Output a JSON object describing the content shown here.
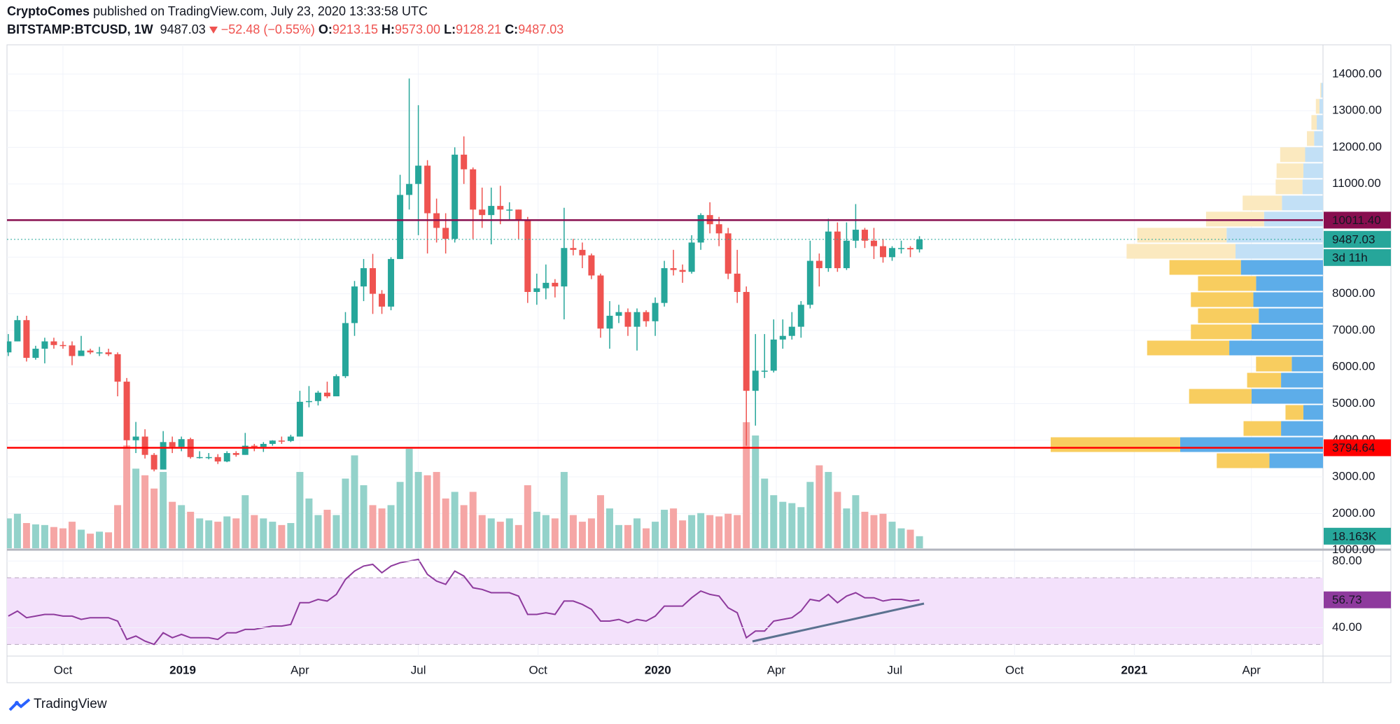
{
  "header": {
    "author": "CryptoComes",
    "published": "published on TradingView.com, July 23, 2020 13:33:58 UTC",
    "symbol": "BITSTAMP:BTCUSD, 1W",
    "close": "9487.03",
    "change": "−52.48 (−0.55%)",
    "ohlc": [
      {
        "label": "O:",
        "value": "9213.15"
      },
      {
        "label": "H:",
        "value": "9573.00"
      },
      {
        "label": "L:",
        "value": "9128.21"
      },
      {
        "label": "C:",
        "value": "9487.03"
      }
    ]
  },
  "footer": {
    "brand": "TradingView"
  },
  "chart_data": {
    "type": "candlestick",
    "x": [
      "2018-08-20",
      "2018-08-27",
      "2018-09-03",
      "2018-09-10",
      "2018-09-17",
      "2018-09-24",
      "2018-10-01",
      "2018-10-08",
      "2018-10-15",
      "2018-10-22",
      "2018-10-29",
      "2018-11-05",
      "2018-11-12",
      "2018-11-19",
      "2018-11-26",
      "2018-12-03",
      "2018-12-10",
      "2018-12-17",
      "2018-12-24",
      "2018-12-31",
      "2019-01-07",
      "2019-01-14",
      "2019-01-21",
      "2019-01-28",
      "2019-02-04",
      "2019-02-11",
      "2019-02-18",
      "2019-02-25",
      "2019-03-04",
      "2019-03-11",
      "2019-03-18",
      "2019-03-25",
      "2019-04-01",
      "2019-04-08",
      "2019-04-15",
      "2019-04-22",
      "2019-04-29",
      "2019-05-06",
      "2019-05-13",
      "2019-05-20",
      "2019-05-27",
      "2019-06-03",
      "2019-06-10",
      "2019-06-17",
      "2019-06-24",
      "2019-07-01",
      "2019-07-08",
      "2019-07-15",
      "2019-07-22",
      "2019-07-29",
      "2019-08-05",
      "2019-08-12",
      "2019-08-19",
      "2019-08-26",
      "2019-09-02",
      "2019-09-09",
      "2019-09-16",
      "2019-09-23",
      "2019-09-30",
      "2019-10-07",
      "2019-10-14",
      "2019-10-21",
      "2019-10-28",
      "2019-11-04",
      "2019-11-11",
      "2019-11-18",
      "2019-11-25",
      "2019-12-02",
      "2019-12-09",
      "2019-12-16",
      "2019-12-23",
      "2019-12-30",
      "2020-01-06",
      "2020-01-13",
      "2020-01-20",
      "2020-01-27",
      "2020-02-03",
      "2020-02-10",
      "2020-02-17",
      "2020-02-24",
      "2020-03-02",
      "2020-03-09",
      "2020-03-16",
      "2020-03-23",
      "2020-03-30",
      "2020-04-06",
      "2020-04-13",
      "2020-04-20",
      "2020-04-27",
      "2020-05-04",
      "2020-05-11",
      "2020-05-18",
      "2020-05-25",
      "2020-06-01",
      "2020-06-08",
      "2020-06-15",
      "2020-06-22",
      "2020-06-29",
      "2020-07-06",
      "2020-07-13",
      "2020-07-20"
    ],
    "open": [
      6400,
      6700,
      7280,
      6250,
      6500,
      6700,
      6600,
      6590,
      6300,
      6450,
      6400,
      6400,
      6350,
      5600,
      4000,
      4100,
      3600,
      3200,
      3950,
      3820,
      4030,
      3540,
      3540,
      3540,
      3420,
      3650,
      3600,
      3850,
      3820,
      3900,
      3990,
      3980,
      4100,
      5050,
      5070,
      5300,
      5200,
      5750,
      7200,
      8200,
      8700,
      8000,
      7650,
      8950,
      10700,
      11000,
      11500,
      10200,
      9800,
      9500,
      11800,
      11400,
      10300,
      10150,
      10400,
      10300,
      10300,
      10000,
      8050,
      8150,
      8300,
      8200,
      9250,
      9200,
      9050,
      8500,
      7050,
      7400,
      7500,
      7100,
      7500,
      7250,
      7750,
      8700,
      8650,
      8600,
      9400,
      10150,
      9900,
      9650,
      8550,
      8050,
      5350,
      5900,
      5900,
      6750,
      6850,
      7100,
      7700,
      8900,
      8700,
      9700,
      8700,
      9450,
      9750,
      9450,
      9300,
      9000,
      9250,
      9250,
      9213.15
    ],
    "high": [
      6900,
      7400,
      7400,
      6580,
      6800,
      6800,
      6700,
      6700,
      6850,
      6500,
      6550,
      6500,
      6400,
      5700,
      4500,
      4300,
      3650,
      4250,
      4100,
      4100,
      4070,
      3700,
      3650,
      3620,
      3700,
      3700,
      4200,
      3900,
      3950,
      4000,
      4100,
      4150,
      5350,
      5480,
      5350,
      5600,
      5800,
      7500,
      8350,
      8950,
      9090,
      8100,
      9000,
      11250,
      13880,
      13150,
      11650,
      10600,
      10200,
      12000,
      12300,
      11450,
      10900,
      10900,
      10950,
      10500,
      10300,
      10100,
      8550,
      8800,
      8400,
      10350,
      9500,
      9400,
      9100,
      8550,
      7800,
      7700,
      7600,
      7600,
      7550,
      7900,
      8900,
      9200,
      8800,
      9600,
      10200,
      10500,
      10100,
      9800,
      9200,
      8200,
      6900,
      6900,
      7300,
      7300,
      7500,
      7800,
      9450,
      9100,
      10050,
      9950,
      9950,
      10450,
      9800,
      9800,
      9500,
      9300,
      9450,
      9300,
      9573
    ],
    "low": [
      6300,
      6700,
      6150,
      6200,
      6100,
      6500,
      6500,
      6050,
      6300,
      6350,
      6300,
      6300,
      5200,
      3800,
      3650,
      3500,
      3150,
      3200,
      3650,
      3700,
      3500,
      3500,
      3480,
      3350,
      3400,
      3550,
      3600,
      3700,
      3680,
      3850,
      3900,
      3950,
      4100,
      4900,
      4950,
      5150,
      5200,
      5700,
      6850,
      7800,
      7450,
      7450,
      7550,
      8950,
      10300,
      9600,
      9100,
      9400,
      9100,
      9400,
      11000,
      9500,
      9800,
      9350,
      9900,
      10000,
      9500,
      7750,
      7700,
      7850,
      7900,
      7300,
      9050,
      8700,
      8400,
      6800,
      6500,
      7200,
      6850,
      6450,
      7100,
      6850,
      7650,
      8500,
      8300,
      8550,
      9200,
      9650,
      9300,
      8400,
      7750,
      3850,
      4400,
      5700,
      5850,
      6500,
      6750,
      6800,
      7600,
      8200,
      8600,
      8600,
      8650,
      9250,
      9250,
      8950,
      8850,
      8900,
      9100,
      9000,
      9128.21
    ],
    "close": [
      6700,
      7280,
      6250,
      6500,
      6700,
      6600,
      6590,
      6300,
      6450,
      6400,
      6400,
      6350,
      5600,
      4000,
      4100,
      3600,
      3200,
      3950,
      3820,
      4030,
      3540,
      3540,
      3540,
      3420,
      3650,
      3600,
      3850,
      3820,
      3900,
      3990,
      3980,
      4100,
      5050,
      5070,
      5300,
      5200,
      5750,
      7200,
      8200,
      8700,
      8000,
      7650,
      8950,
      10700,
      11000,
      11500,
      10200,
      9800,
      9500,
      11800,
      11400,
      10300,
      10150,
      10400,
      10300,
      10300,
      10000,
      8050,
      8150,
      8300,
      8200,
      9250,
      9200,
      9050,
      8500,
      7050,
      7400,
      7500,
      7100,
      7500,
      7250,
      7750,
      8700,
      8650,
      8600,
      9400,
      10150,
      9900,
      9650,
      8550,
      8050,
      5350,
      5900,
      5900,
      6750,
      6850,
      7100,
      7700,
      8900,
      8700,
      9700,
      8700,
      9450,
      9750,
      9450,
      9300,
      9000,
      9250,
      9250,
      9213.15,
      9487.03
    ],
    "volume": [
      45000,
      52000,
      38000,
      36000,
      35000,
      32000,
      30000,
      40000,
      28000,
      22000,
      25000,
      24000,
      65000,
      155000,
      120000,
      110000,
      90000,
      115000,
      70000,
      65000,
      55000,
      45000,
      42000,
      40000,
      48000,
      45000,
      80000,
      50000,
      45000,
      40000,
      35000,
      38000,
      115000,
      75000,
      50000,
      58000,
      50000,
      105000,
      140000,
      95000,
      65000,
      60000,
      65000,
      100000,
      150000,
      115000,
      110000,
      115000,
      75000,
      85000,
      65000,
      85000,
      50000,
      45000,
      40000,
      45000,
      35000,
      95000,
      55000,
      50000,
      45000,
      115000,
      50000,
      40000,
      45000,
      80000,
      60000,
      35000,
      35000,
      45000,
      30000,
      40000,
      58000,
      60000,
      42000,
      50000,
      53000,
      50000,
      48000,
      52000,
      50000,
      190000,
      170000,
      105000,
      80000,
      70000,
      68000,
      62000,
      100000,
      125000,
      115000,
      85000,
      60000,
      80000,
      55000,
      50000,
      52000,
      40000,
      30000,
      28000,
      18163
    ],
    "last_volume_label": "18.163K",
    "up_color": "#26a69a",
    "down_color": "#ef5350",
    "volume_up_color": "#93d2ca",
    "volume_down_color": "#f5a6a5",
    "xlim": [
      "2018-08-19",
      "2021-05-26"
    ],
    "xticks": [
      {
        "value": "2018-10-01",
        "label": "Oct"
      },
      {
        "value": "2019-01-01",
        "label": "2019"
      },
      {
        "value": "2019-04-01",
        "label": "Apr"
      },
      {
        "value": "2019-07-01",
        "label": "Jul"
      },
      {
        "value": "2019-10-01",
        "label": "Oct"
      },
      {
        "value": "2020-01-01",
        "label": "2020"
      },
      {
        "value": "2020-04-01",
        "label": "Apr"
      },
      {
        "value": "2020-07-01",
        "label": "Jul"
      },
      {
        "value": "2020-10-01",
        "label": "Oct"
      },
      {
        "value": "2021-01-01",
        "label": "2021"
      },
      {
        "value": "2021-04-01",
        "label": "Apr"
      }
    ],
    "ylim": [
      1050,
      14800
    ],
    "yticks": [
      {
        "value": 1000,
        "label": "1000.00"
      },
      {
        "value": 2000,
        "label": "2000.00"
      },
      {
        "value": 3000,
        "label": "3000.00"
      },
      {
        "value": 4000,
        "label": "4000.00"
      },
      {
        "value": 5000,
        "label": "5000.00"
      },
      {
        "value": 6000,
        "label": "6000.00"
      },
      {
        "value": 7000,
        "label": "7000.00"
      },
      {
        "value": 8000,
        "label": "8000.00"
      },
      {
        "value": 9000,
        "label": "9000.00"
      },
      {
        "value": 10000,
        "label": "10000.00"
      },
      {
        "value": 11000,
        "label": "11000.00"
      },
      {
        "value": 12000,
        "label": "12000.00"
      },
      {
        "value": 13000,
        "label": "13000.00"
      },
      {
        "value": 14000,
        "label": "14000.00"
      }
    ],
    "grid": true,
    "price_lines": [
      {
        "value": 10011.4,
        "label": "10011.40",
        "color": "#880e4f"
      },
      {
        "value": 3794.64,
        "label": "3794.64",
        "color": "#ff0000"
      }
    ],
    "last_price": {
      "value": 9487.03,
      "label": "9487.03",
      "countdown": "3d 11h",
      "color": "#26a69a"
    },
    "volume_profile": {
      "price_low": [
        3220,
        3660,
        4100,
        4540,
        4980,
        5420,
        5860,
        6300,
        6740,
        7180,
        7620,
        8060,
        8500,
        8940,
        9380,
        9820,
        10260,
        10700,
        11140,
        11580,
        12020,
        12460,
        12900,
        13340
      ],
      "price_high": [
        3660,
        4100,
        4540,
        4980,
        5420,
        5860,
        6300,
        6740,
        7180,
        7620,
        8060,
        8500,
        8940,
        9380,
        9820,
        10260,
        10700,
        11140,
        11580,
        12020,
        12460,
        12900,
        13340,
        13780
      ],
      "up": [
        60,
        160,
        47,
        22,
        80,
        47,
        35,
        105,
        80,
        72,
        78,
        75,
        92,
        98,
        108,
        66,
        46,
        23,
        22,
        20,
        10,
        7,
        4,
        2
      ],
      "down": [
        59,
        145,
        42,
        20,
        70,
        38,
        40,
        92,
        68,
        68,
        70,
        65,
        80,
        122,
        100,
        65,
        44,
        30,
        30,
        28,
        8,
        6,
        4,
        1
      ],
      "value_area": [
        true,
        true,
        true,
        true,
        true,
        true,
        true,
        true,
        true,
        true,
        true,
        true,
        true,
        false,
        false,
        false,
        false,
        false,
        false,
        false,
        false,
        false,
        false,
        false
      ],
      "up_color": "#5dade9",
      "down_color": "#f8cd5f",
      "up_color_light": "#c2e0f6",
      "down_color_light": "#fbe9bf"
    },
    "rsi": {
      "values": [
        47,
        50,
        46,
        47,
        48,
        48,
        47,
        47,
        45,
        46,
        46,
        46,
        44,
        33,
        35,
        32,
        30,
        37,
        34,
        36,
        34,
        34,
        34,
        33,
        37,
        37,
        39,
        39,
        40,
        41,
        41,
        42,
        55,
        55,
        57,
        56,
        60,
        69,
        74,
        77,
        78,
        73,
        77,
        79,
        80,
        81,
        72,
        68,
        66,
        74,
        71,
        64,
        63,
        61,
        61,
        61,
        59,
        48,
        48,
        49,
        48,
        56,
        56,
        54,
        51,
        44,
        44,
        45,
        43,
        45,
        44,
        47,
        53,
        53,
        53,
        58,
        62,
        60,
        59,
        52,
        49,
        34,
        38,
        38,
        44,
        45,
        46,
        50,
        57,
        56,
        60,
        55,
        59,
        61,
        58,
        58,
        56,
        57,
        57,
        56,
        56.73
      ],
      "last_label": "56.73",
      "color": "#8e3a9d",
      "band_color": "#f3e1fb",
      "ylim": [
        23,
        86
      ],
      "yticks": [
        {
          "value": 80,
          "label": "80.00"
        },
        {
          "value": 40,
          "label": "40.00"
        }
      ],
      "bands": [
        30,
        70
      ]
    }
  }
}
